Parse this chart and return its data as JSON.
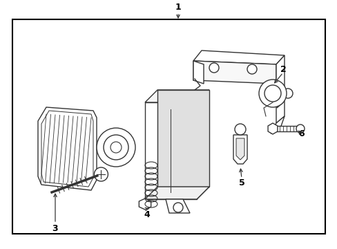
{
  "bg_color": "#ffffff",
  "line_color": "#333333",
  "border_color": "#000000",
  "label_color": "#000000",
  "figsize": [
    4.89,
    3.6
  ],
  "dpi": 100
}
